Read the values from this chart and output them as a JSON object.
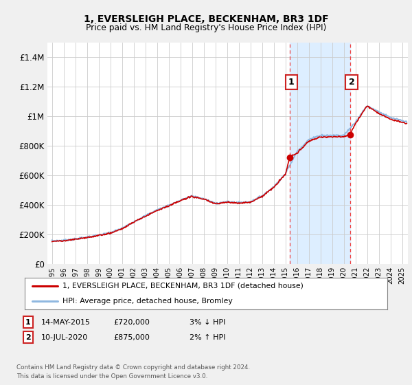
{
  "title": "1, EVERSLEIGH PLACE, BECKENHAM, BR3 1DF",
  "subtitle": "Price paid vs. HM Land Registry's House Price Index (HPI)",
  "ylabel_ticks": [
    0,
    200000,
    400000,
    600000,
    800000,
    1000000,
    1200000,
    1400000
  ],
  "ylabel_labels": [
    "£0",
    "£200K",
    "£400K",
    "£600K",
    "£800K",
    "£1M",
    "£1.2M",
    "£1.4M"
  ],
  "ylim": [
    0,
    1500000
  ],
  "xlim_start": 1994.6,
  "xlim_end": 2025.5,
  "hpi_color": "#90b8e0",
  "hpi_fill_color": "#ddeeff",
  "price_color": "#cc0000",
  "sale1_year": 2015.37,
  "sale1_price": 720000,
  "sale2_year": 2020.53,
  "sale2_price": 875000,
  "vline_color": "#ee4444",
  "legend1_label": "1, EVERSLEIGH PLACE, BECKENHAM, BR3 1DF (detached house)",
  "legend2_label": "HPI: Average price, detached house, Bromley",
  "ann1_label": "1",
  "ann2_label": "2",
  "ann1_date": "14-MAY-2015",
  "ann1_price": "£720,000",
  "ann1_hpi": "3% ↓ HPI",
  "ann2_date": "10-JUL-2020",
  "ann2_price": "£875,000",
  "ann2_hpi": "2% ↑ HPI",
  "footnote_line1": "Contains HM Land Registry data © Crown copyright and database right 2024.",
  "footnote_line2": "This data is licensed under the Open Government Licence v3.0.",
  "bg_color": "#f0f0f0",
  "plot_bg_color": "#ffffff",
  "grid_color": "#cccccc",
  "xtick_years": [
    1995,
    1996,
    1997,
    1998,
    1999,
    2000,
    2001,
    2002,
    2003,
    2004,
    2005,
    2006,
    2007,
    2008,
    2009,
    2010,
    2011,
    2012,
    2013,
    2014,
    2015,
    2016,
    2017,
    2018,
    2019,
    2020,
    2021,
    2022,
    2023,
    2024,
    2025
  ]
}
